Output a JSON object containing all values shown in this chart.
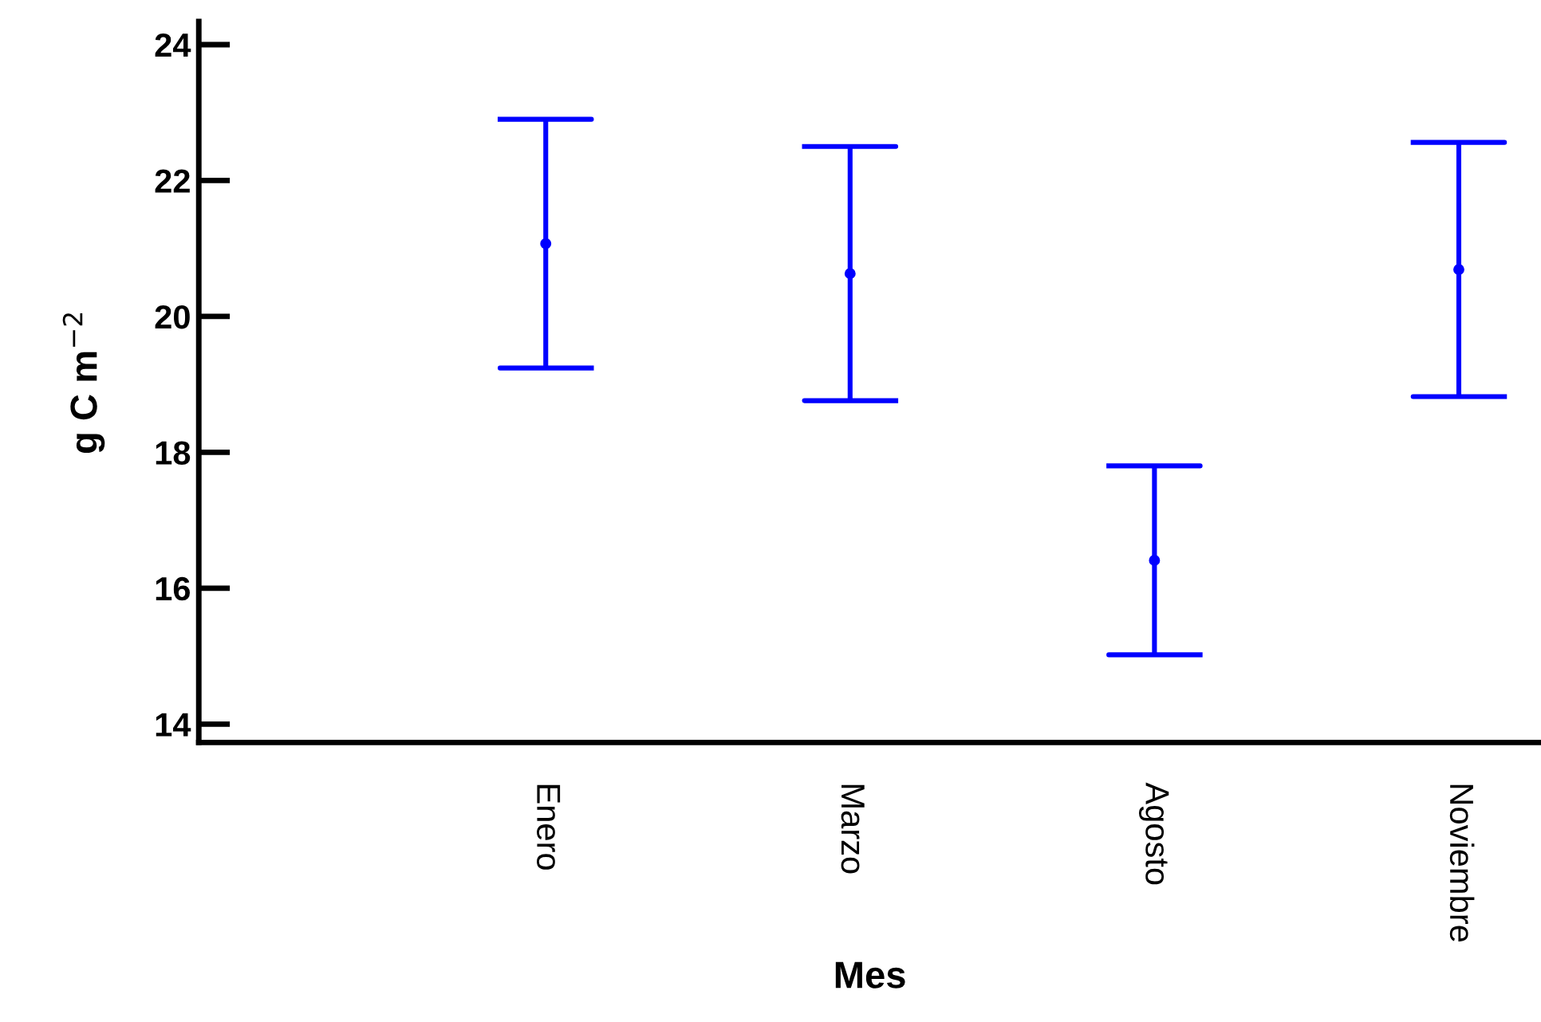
{
  "chart_data": {
    "type": "scatter",
    "xlabel": "Mes",
    "ylabel": "g C m$^{−2}$",
    "categories": [
      "Enero",
      "Marzo",
      "Agosto",
      "Noviembre"
    ],
    "series": [
      {
        "color": "#0000ff",
        "values": [
          21.07,
          20.63,
          16.41,
          20.69
        ],
        "errors": [
          1.83,
          1.87,
          1.39,
          1.87
        ]
      }
    ],
    "marker": "circle",
    "ylim": [
      13.73,
      24.34
    ],
    "yticks": [
      14,
      16,
      18,
      20,
      22,
      24
    ],
    "grid": false,
    "legend": false
  }
}
